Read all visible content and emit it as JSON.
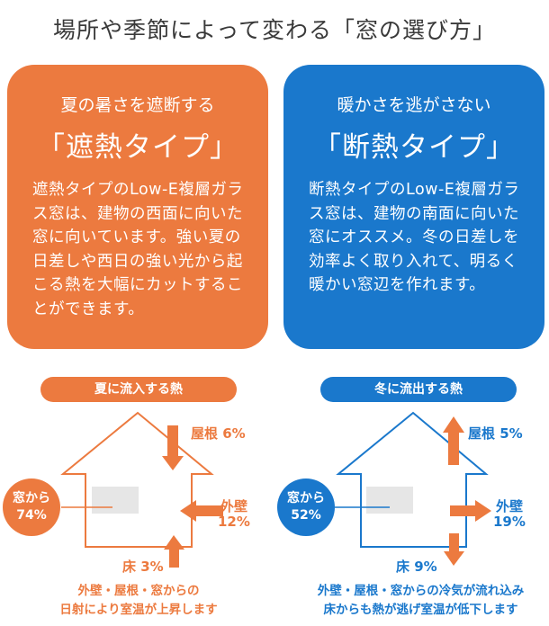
{
  "title": "場所や季節によって変わる「窓の選び方」",
  "left_card": {
    "subtitle": "夏の暑さを遮断する",
    "heading": "「遮熱タイプ」",
    "body": "遮熱タイプのLow-E複層ガラス窓は、建物の西面に向いた窓に向いています。強い夏の日差しや西日の強い光から起こる熱を大幅にカットすることができます。"
  },
  "right_card": {
    "subtitle": "暖かさを逃がさない",
    "heading": "「断熱タイプ」",
    "body": "断熱タイプのLow-E複層ガラス窓は、建物の南面に向いた窓にオススメ。冬の日差しを効率よく取り入れて、明るく暖かい窓辺を作れます。"
  },
  "summer": {
    "pill": "夏に流入する熱",
    "roof": "屋根 6%",
    "wall_label": "外壁",
    "wall_value": "12%",
    "floor": "床 3%",
    "window_label": "窓から",
    "window_value": "74%",
    "caption_line1": "外壁・屋根・窓からの",
    "caption_line2": "日射により室温が上昇します"
  },
  "winter": {
    "pill": "冬に流出する熱",
    "roof": "屋根 5%",
    "wall_label": "外壁",
    "wall_value": "19%",
    "floor": "床 9%",
    "window_label": "窓から",
    "window_value": "52%",
    "caption_line1": "外壁・屋根・窓からの冷気が流れ込み",
    "caption_line2": "床からも熱が逃げ室温が低下します"
  },
  "colors": {
    "orange": "#ec7a3f",
    "blue": "#1a78cc"
  }
}
